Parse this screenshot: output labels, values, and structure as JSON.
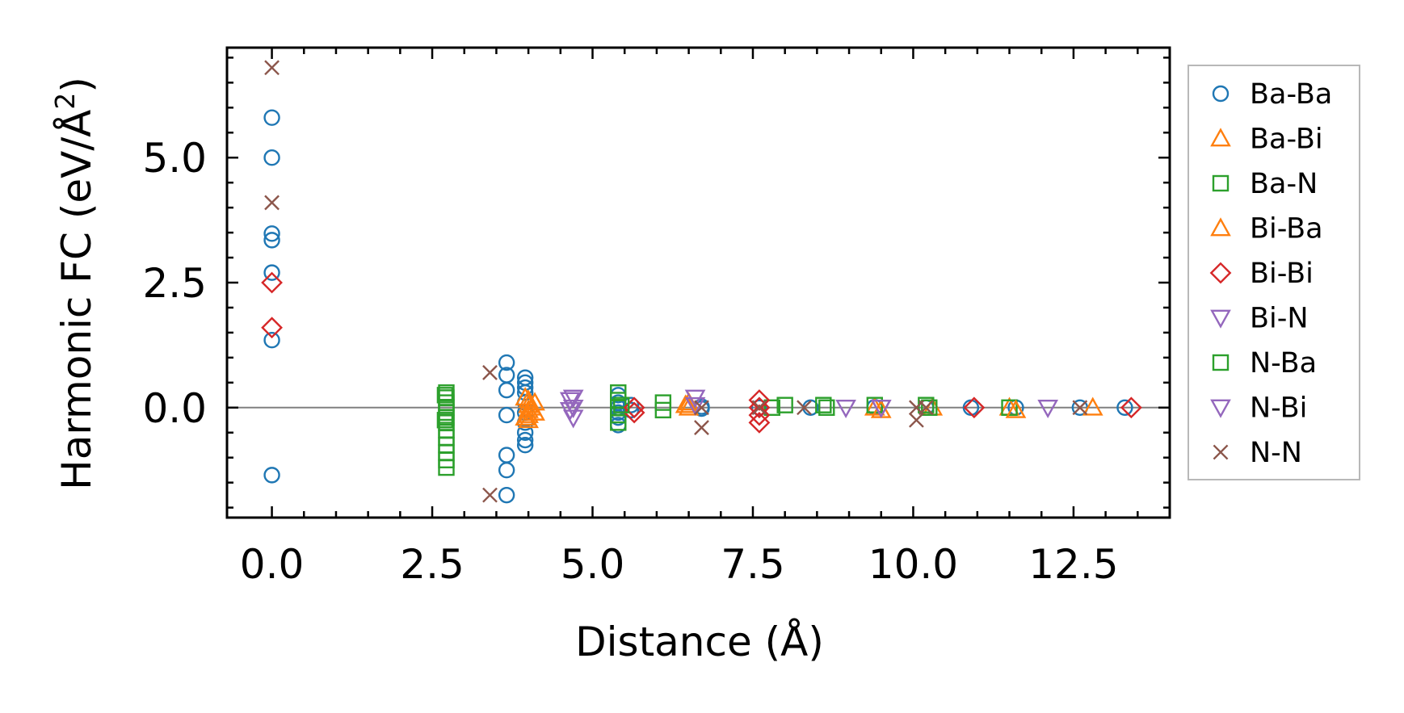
{
  "chart_data": {
    "type": "scatter",
    "title": "",
    "xlabel": "Distance (Å)",
    "ylabel_main": "Harmonic FC (eV/Å",
    "ylabel_sup": "2",
    "ylabel_close": ")",
    "xlim": [
      -0.7,
      14.0
    ],
    "ylim": [
      -2.2,
      7.2
    ],
    "xticks": [
      0.0,
      2.5,
      5.0,
      7.5,
      10.0,
      12.5
    ],
    "xtick_labels": [
      "0.0",
      "2.5",
      "5.0",
      "7.5",
      "10.0",
      "12.5"
    ],
    "yticks": [
      0.0,
      2.5,
      5.0
    ],
    "ytick_labels": [
      "0.0",
      "2.5",
      "5.0"
    ],
    "zero_line": true,
    "legend_position": "outside-right",
    "series": [
      {
        "name": "Ba-Ba",
        "marker": "circle",
        "color": "#1f77b4",
        "points": [
          [
            0,
            5.8
          ],
          [
            0,
            5.0
          ],
          [
            0,
            3.48
          ],
          [
            0,
            3.35
          ],
          [
            0,
            2.7
          ],
          [
            0,
            1.35
          ],
          [
            0,
            -1.35
          ],
          [
            3.66,
            0.9
          ],
          [
            3.66,
            0.65
          ],
          [
            3.66,
            0.35
          ],
          [
            3.66,
            -0.15
          ],
          [
            3.66,
            -0.95
          ],
          [
            3.66,
            -1.25
          ],
          [
            3.66,
            -1.75
          ],
          [
            3.95,
            0.6
          ],
          [
            3.95,
            0.5
          ],
          [
            3.95,
            0.4
          ],
          [
            3.95,
            0.3
          ],
          [
            3.95,
            0.1
          ],
          [
            3.95,
            -0.1
          ],
          [
            3.95,
            -0.3
          ],
          [
            3.95,
            -0.5
          ],
          [
            3.95,
            -0.65
          ],
          [
            3.95,
            -0.75
          ],
          [
            5.4,
            0.25
          ],
          [
            5.4,
            0.1
          ],
          [
            5.4,
            0.0
          ],
          [
            5.4,
            -0.1
          ],
          [
            5.4,
            -0.2
          ],
          [
            5.4,
            -0.35
          ],
          [
            5.6,
            0.05
          ],
          [
            5.6,
            -0.05
          ],
          [
            6.7,
            0.02
          ],
          [
            6.7,
            -0.02
          ],
          [
            7.6,
            0.0
          ],
          [
            8.4,
            0.0
          ],
          [
            9.4,
            0.01
          ],
          [
            10.2,
            0.0
          ],
          [
            10.9,
            0.0
          ],
          [
            11.6,
            0.0
          ],
          [
            12.6,
            0.0
          ],
          [
            13.3,
            0.0
          ]
        ]
      },
      {
        "name": "Ba-Bi",
        "marker": "triangle-up",
        "color": "#ff7f0e",
        "points": [
          [
            4.0,
            0.15
          ],
          [
            4.0,
            0.05
          ],
          [
            4.0,
            -0.05
          ],
          [
            4.0,
            -0.15
          ],
          [
            4.0,
            -0.25
          ],
          [
            4.1,
            0.1
          ],
          [
            4.1,
            -0.1
          ],
          [
            6.5,
            0.1
          ],
          [
            6.5,
            0.0
          ],
          [
            9.4,
            0.0
          ],
          [
            10.3,
            0.0
          ],
          [
            11.5,
            0.0
          ],
          [
            12.8,
            0.0
          ]
        ]
      },
      {
        "name": "Ba-N",
        "marker": "square",
        "color": "#2ca02c",
        "points": [
          [
            2.72,
            0.3
          ],
          [
            2.72,
            0.2
          ],
          [
            2.72,
            0.1
          ],
          [
            2.72,
            0.0
          ],
          [
            2.72,
            -0.1
          ],
          [
            2.72,
            -0.2
          ],
          [
            2.72,
            -0.3
          ],
          [
            2.72,
            -0.45
          ],
          [
            2.72,
            -0.6
          ],
          [
            2.72,
            -0.75
          ],
          [
            2.72,
            -0.9
          ],
          [
            2.72,
            -1.05
          ],
          [
            2.72,
            -1.2
          ],
          [
            5.4,
            0.3
          ],
          [
            5.4,
            0.15
          ],
          [
            5.4,
            0.0
          ],
          [
            5.4,
            -0.15
          ],
          [
            5.4,
            -0.3
          ],
          [
            6.1,
            0.1
          ],
          [
            6.1,
            -0.05
          ],
          [
            7.8,
            0.0
          ],
          [
            8.0,
            0.05
          ],
          [
            8.6,
            0.05
          ],
          [
            9.4,
            0.05
          ],
          [
            10.2,
            0.05
          ],
          [
            11.5,
            0.0
          ]
        ]
      },
      {
        "name": "Bi-Ba",
        "marker": "triangle-up",
        "color": "#ff7f0e",
        "points": [
          [
            3.95,
            0.2
          ],
          [
            3.95,
            -0.2
          ],
          [
            4.05,
            0.0
          ],
          [
            6.45,
            0.05
          ],
          [
            9.5,
            -0.05
          ],
          [
            11.6,
            -0.05
          ]
        ]
      },
      {
        "name": "Bi-Bi",
        "marker": "diamond",
        "color": "#d62728",
        "points": [
          [
            0,
            2.5
          ],
          [
            0,
            1.6
          ],
          [
            5.65,
            0.0
          ],
          [
            5.65,
            -0.1
          ],
          [
            7.6,
            0.15
          ],
          [
            7.6,
            0.0
          ],
          [
            7.6,
            -0.15
          ],
          [
            7.6,
            -0.3
          ],
          [
            10.95,
            0.0
          ],
          [
            13.4,
            0.0
          ]
        ]
      },
      {
        "name": "Bi-N",
        "marker": "triangle-down",
        "color": "#9467bd",
        "points": [
          [
            4.7,
            0.2
          ],
          [
            4.7,
            0.0
          ],
          [
            4.7,
            -0.2
          ],
          [
            6.6,
            0.2
          ],
          [
            6.6,
            0.05
          ],
          [
            9.5,
            0.0
          ]
        ]
      },
      {
        "name": "N-Ba",
        "marker": "square",
        "color": "#2ca02c",
        "points": [
          [
            2.7,
            0.25
          ],
          [
            2.7,
            -0.25
          ],
          [
            5.45,
            0.05
          ],
          [
            8.65,
            0.0
          ],
          [
            10.25,
            0.0
          ]
        ]
      },
      {
        "name": "N-Bi",
        "marker": "triangle-down",
        "color": "#9467bd",
        "points": [
          [
            4.65,
            0.15
          ],
          [
            4.65,
            -0.05
          ],
          [
            8.95,
            0.0
          ],
          [
            9.5,
            0.0
          ],
          [
            12.1,
            0.0
          ]
        ]
      },
      {
        "name": "N-N",
        "marker": "x",
        "color": "#8c564b",
        "points": [
          [
            0,
            6.8
          ],
          [
            0,
            4.1
          ],
          [
            3.4,
            0.7
          ],
          [
            3.4,
            -1.75
          ],
          [
            6.7,
            0.0
          ],
          [
            6.7,
            -0.4
          ],
          [
            7.6,
            0.0
          ],
          [
            8.3,
            0.0
          ],
          [
            10.05,
            0.0
          ],
          [
            10.05,
            -0.25
          ],
          [
            10.2,
            0.0
          ],
          [
            12.6,
            0.0
          ]
        ]
      }
    ]
  }
}
